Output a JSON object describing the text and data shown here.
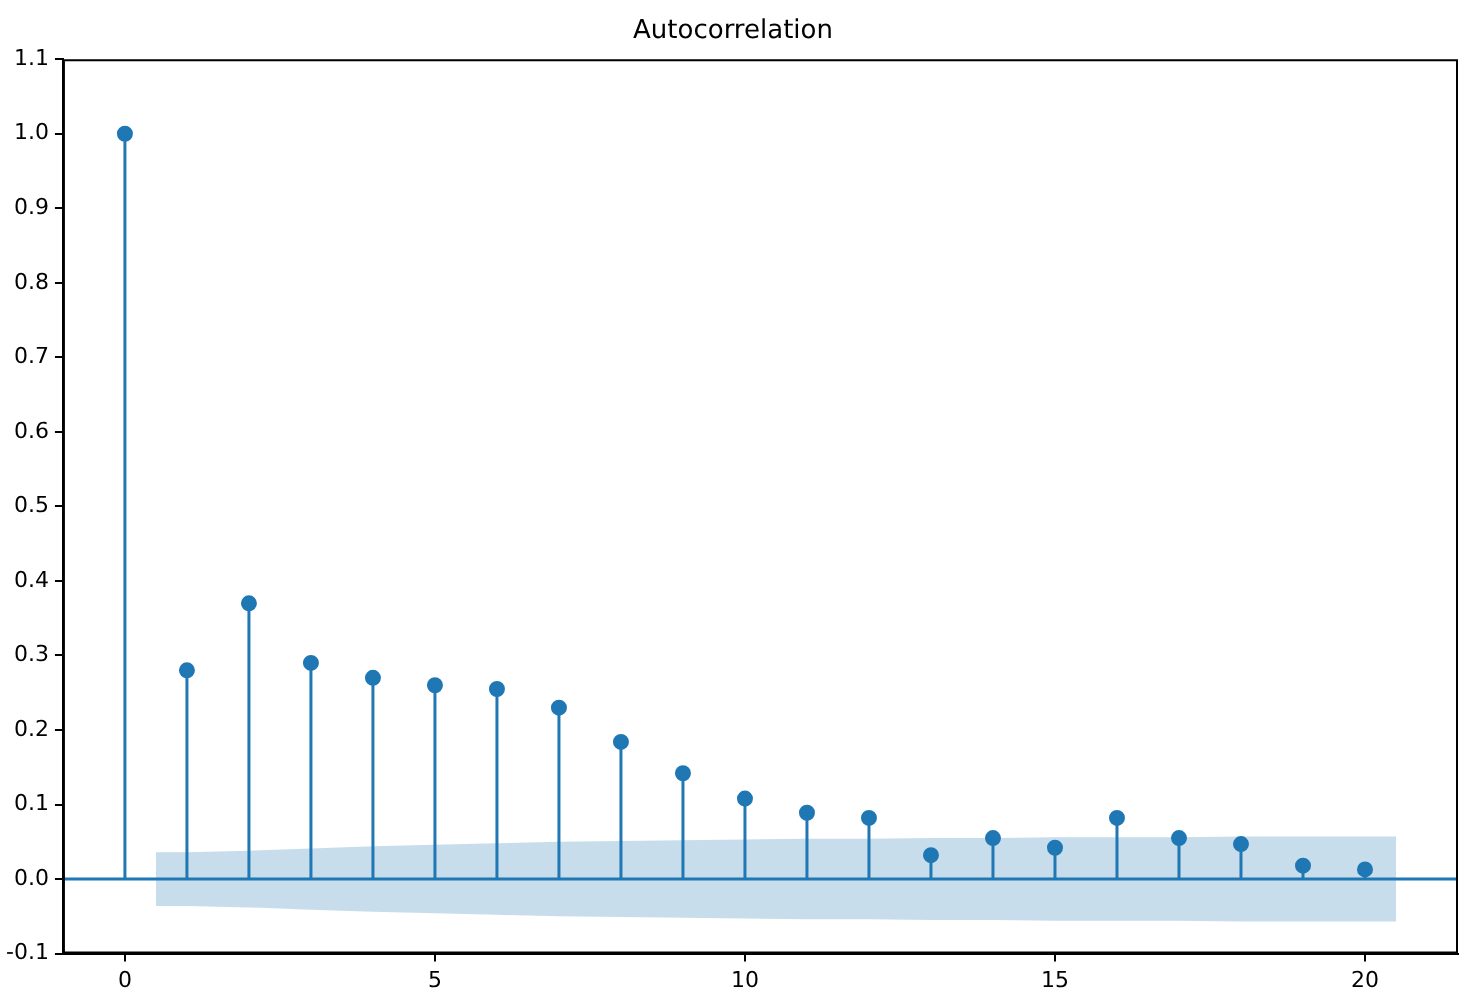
{
  "chart_data": {
    "type": "lollipop",
    "title": "Autocorrelation",
    "x": [
      0,
      1,
      2,
      3,
      4,
      5,
      6,
      7,
      8,
      9,
      10,
      11,
      12,
      13,
      14,
      15,
      16,
      17,
      18,
      19,
      20
    ],
    "series": [
      {
        "color": "#1f77b4",
        "marker": "circle",
        "values": [
          1.0,
          0.28,
          0.37,
          0.29,
          0.27,
          0.26,
          0.255,
          0.23,
          0.184,
          0.142,
          0.108,
          0.089,
          0.082,
          0.032,
          0.055,
          0.042,
          0.082,
          0.055,
          0.047,
          0.018,
          0.013
        ]
      },
      {
        "type": "line",
        "color": "#1f77b4",
        "marker": "none",
        "x": [
          -1,
          0.5,
          1,
          2,
          3,
          4,
          5,
          6,
          7,
          8,
          9,
          10,
          11,
          12,
          13,
          14,
          15,
          16,
          17,
          18,
          19,
          20,
          20.5,
          21.5
        ],
        "values": [
          0,
          0,
          0,
          0,
          0,
          0,
          0,
          0,
          0,
          0,
          0,
          0,
          0,
          0,
          0,
          0,
          0,
          0,
          0,
          0,
          0,
          0,
          0,
          0
        ],
        "lower": [
          null,
          -0.036,
          -0.036,
          -0.038,
          -0.041,
          -0.044,
          -0.046,
          -0.048,
          -0.05,
          -0.051,
          -0.052,
          -0.053,
          -0.054,
          -0.054,
          -0.055,
          -0.055,
          -0.056,
          -0.056,
          -0.056,
          -0.057,
          -0.057,
          -0.057,
          -0.057,
          null
        ],
        "upper": [
          null,
          0.036,
          0.036,
          0.038,
          0.041,
          0.044,
          0.046,
          0.048,
          0.05,
          0.051,
          0.052,
          0.053,
          0.054,
          0.054,
          0.055,
          0.055,
          0.056,
          0.056,
          0.056,
          0.057,
          0.057,
          0.057,
          0.057,
          null
        ]
      }
    ],
    "xlim": [
      -1,
      21.5
    ],
    "xticks": [
      0,
      5,
      10,
      15,
      20
    ],
    "ylim": [
      -0.1,
      1.1
    ],
    "yticks": [
      -0.1,
      {
        "value": 0,
        "label": "0.0"
      },
      0.1,
      0.2,
      0.3,
      0.4,
      0.5,
      0.6,
      0.7,
      0.8,
      0.9,
      {
        "value": 1,
        "label": "1.0"
      },
      1.1
    ],
    "grid": false,
    "legend": false
  }
}
